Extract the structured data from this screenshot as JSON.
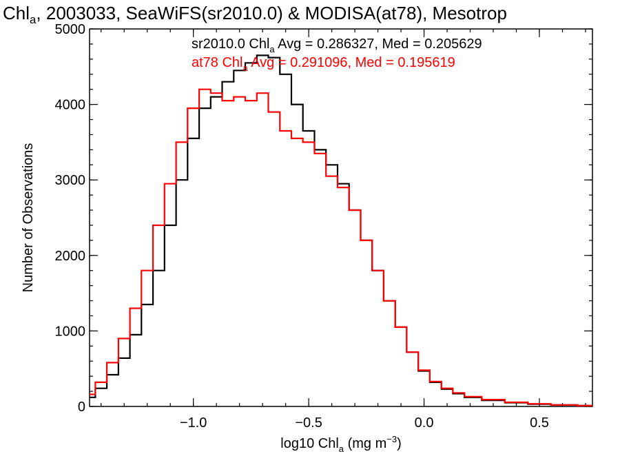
{
  "chart_data": {
    "type": "line",
    "title": "Chl_a, 2003033, SeaWiFS(sr2010.0) & MODISA(at78), Mesotrop",
    "xlabel": "log10 Chl_a (mg m^-3)",
    "ylabel": "Number of Observations",
    "xlim": [
      -1.45,
      0.73
    ],
    "ylim": [
      0,
      5000
    ],
    "x_ticks": [
      -1.0,
      -0.5,
      0.0,
      0.5
    ],
    "x_tick_labels": [
      "−1.0",
      "−0.5",
      "0.0",
      "0.5"
    ],
    "y_ticks": [
      0,
      1000,
      2000,
      3000,
      4000,
      5000
    ],
    "y_tick_labels": [
      "0",
      "1000",
      "2000",
      "3000",
      "4000",
      "5000"
    ],
    "grid": false,
    "legend_position": "top",
    "series": [
      {
        "name": "sr2010.0",
        "color": "#000000",
        "label": "sr2010.0 Chl_a Avg = 0.286327, Med = 0.205629",
        "x": [
          -1.45,
          -1.4,
          -1.35,
          -1.3,
          -1.25,
          -1.2,
          -1.15,
          -1.1,
          -1.05,
          -1.0,
          -0.95,
          -0.9,
          -0.85,
          -0.8,
          -0.75,
          -0.7,
          -0.65,
          -0.6,
          -0.55,
          -0.5,
          -0.45,
          -0.4,
          -0.35,
          -0.3,
          -0.25,
          -0.2,
          -0.15,
          -0.1,
          -0.05,
          0.0,
          0.05,
          0.1,
          0.15,
          0.2,
          0.3,
          0.4,
          0.5,
          0.6,
          0.73
        ],
        "y": [
          120,
          240,
          420,
          640,
          950,
          1350,
          1800,
          2400,
          3000,
          3550,
          3950,
          4100,
          4300,
          4450,
          4550,
          4650,
          4620,
          4400,
          4000,
          3650,
          3400,
          3200,
          2950,
          2600,
          2200,
          1800,
          1400,
          1050,
          720,
          470,
          320,
          230,
          170,
          120,
          80,
          50,
          30,
          20,
          10
        ]
      },
      {
        "name": "at78",
        "color": "#ff0000",
        "label": "at78 Chl_a Avg = 0.291096, Med = 0.195619",
        "x": [
          -1.45,
          -1.4,
          -1.35,
          -1.3,
          -1.25,
          -1.2,
          -1.15,
          -1.1,
          -1.05,
          -1.0,
          -0.95,
          -0.9,
          -0.85,
          -0.8,
          -0.75,
          -0.7,
          -0.65,
          -0.6,
          -0.55,
          -0.5,
          -0.45,
          -0.4,
          -0.35,
          -0.3,
          -0.25,
          -0.2,
          -0.15,
          -0.1,
          -0.05,
          0.0,
          0.05,
          0.1,
          0.15,
          0.2,
          0.3,
          0.4,
          0.5,
          0.6,
          0.73
        ],
        "y": [
          160,
          320,
          580,
          900,
          1300,
          1800,
          2400,
          2950,
          3500,
          3950,
          4200,
          4150,
          4050,
          4100,
          4050,
          4150,
          3900,
          3650,
          3550,
          3500,
          3350,
          3050,
          2900,
          2600,
          2200,
          1800,
          1400,
          1050,
          720,
          480,
          330,
          240,
          180,
          130,
          90,
          55,
          35,
          20,
          10
        ]
      }
    ]
  }
}
